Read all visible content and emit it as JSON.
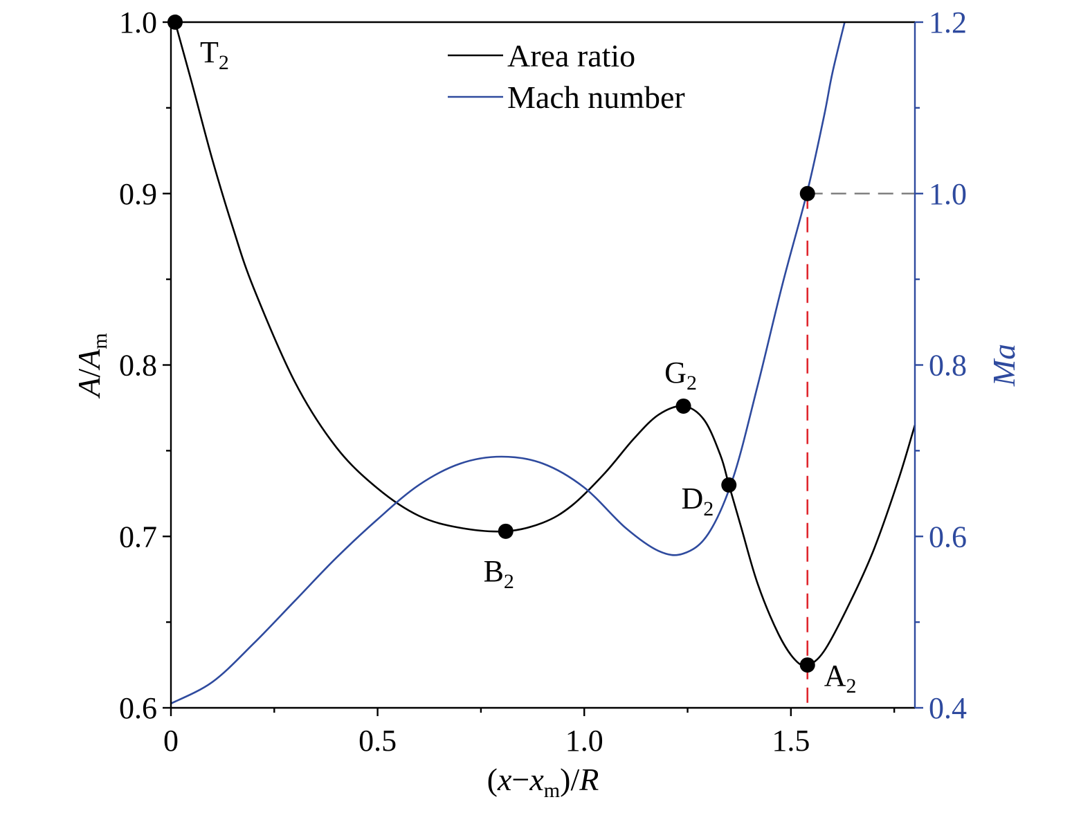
{
  "chart_data": {
    "type": "line",
    "title": "",
    "colors": {
      "area": "#000000",
      "mach": "#2e4a9e",
      "marker_red": "#e0262e",
      "guide_gray": "#808080"
    },
    "x_axis": {
      "label_parts": [
        "(",
        "x",
        "−",
        "x",
        "m",
        ")/",
        "R"
      ],
      "range": [
        0,
        1.8
      ],
      "ticks": [
        0,
        0.5,
        1.0,
        1.5
      ],
      "tick_labels": [
        "0",
        "0.5",
        "1.0",
        "1.5"
      ]
    },
    "y_left": {
      "label_parts": [
        "A",
        "/",
        "A",
        "m"
      ],
      "range": [
        0.6,
        1.0
      ],
      "ticks": [
        0.6,
        0.7,
        0.8,
        0.9,
        1.0
      ],
      "tick_labels": [
        "0.6",
        "0.7",
        "0.8",
        "0.9",
        "1.0"
      ]
    },
    "y_right": {
      "label": "Ma",
      "range": [
        0.4,
        1.2
      ],
      "ticks": [
        0.4,
        0.6,
        0.8,
        1.0,
        1.2
      ],
      "tick_labels": [
        "0.4",
        "0.6",
        "0.8",
        "1.0",
        "1.2"
      ]
    },
    "legend": {
      "position": "top-center",
      "entries": [
        "Area ratio",
        "Mach number"
      ]
    },
    "series": [
      {
        "name": "Area ratio",
        "axis": "left",
        "points": [
          [
            0.01,
            1.0
          ],
          [
            0.05,
            0.965
          ],
          [
            0.1,
            0.92
          ],
          [
            0.15,
            0.88
          ],
          [
            0.2,
            0.845
          ],
          [
            0.3,
            0.79
          ],
          [
            0.4,
            0.752
          ],
          [
            0.5,
            0.728
          ],
          [
            0.6,
            0.712
          ],
          [
            0.7,
            0.705
          ],
          [
            0.81,
            0.703
          ],
          [
            0.9,
            0.708
          ],
          [
            0.97,
            0.718
          ],
          [
            1.05,
            0.737
          ],
          [
            1.12,
            0.757
          ],
          [
            1.18,
            0.771
          ],
          [
            1.24,
            0.776
          ],
          [
            1.29,
            0.768
          ],
          [
            1.33,
            0.747
          ],
          [
            1.35,
            0.73
          ],
          [
            1.38,
            0.705
          ],
          [
            1.42,
            0.672
          ],
          [
            1.47,
            0.643
          ],
          [
            1.51,
            0.628
          ],
          [
            1.54,
            0.625
          ],
          [
            1.58,
            0.633
          ],
          [
            1.64,
            0.66
          ],
          [
            1.7,
            0.692
          ],
          [
            1.76,
            0.733
          ],
          [
            1.8,
            0.765
          ]
        ]
      },
      {
        "name": "Mach number",
        "axis": "right",
        "points": [
          [
            0,
            0.405
          ],
          [
            0.1,
            0.43
          ],
          [
            0.2,
            0.475
          ],
          [
            0.3,
            0.525
          ],
          [
            0.4,
            0.575
          ],
          [
            0.5,
            0.62
          ],
          [
            0.6,
            0.66
          ],
          [
            0.7,
            0.685
          ],
          [
            0.8,
            0.693
          ],
          [
            0.9,
            0.685
          ],
          [
            1.0,
            0.657
          ],
          [
            1.1,
            0.61
          ],
          [
            1.18,
            0.583
          ],
          [
            1.24,
            0.58
          ],
          [
            1.3,
            0.603
          ],
          [
            1.36,
            0.668
          ],
          [
            1.42,
            0.777
          ],
          [
            1.48,
            0.895
          ],
          [
            1.54,
            1.003
          ],
          [
            1.58,
            1.09
          ],
          [
            1.6,
            1.14
          ],
          [
            1.63,
            1.2
          ]
        ]
      }
    ],
    "points": [
      {
        "letter": "T",
        "sub": "2",
        "x": 0.01,
        "y": 1.0
      },
      {
        "letter": "B",
        "sub": "2",
        "x": 0.81,
        "y": 0.703
      },
      {
        "letter": "G",
        "sub": "2",
        "x": 1.24,
        "y": 0.776
      },
      {
        "letter": "D",
        "sub": "2",
        "x": 1.35,
        "y": 0.73
      },
      {
        "letter": "A",
        "sub": "2",
        "x": 1.54,
        "y": 0.625
      }
    ],
    "sonic_marker": {
      "x": 1.54,
      "y_left": 0.9,
      "mach": 1.0
    }
  }
}
